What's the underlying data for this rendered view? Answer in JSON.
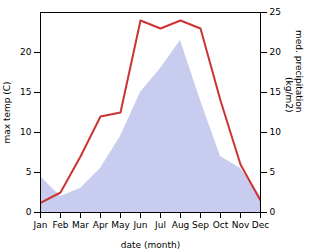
{
  "chart_data": {
    "type": "line",
    "categories": [
      "Jan",
      "Feb",
      "Mar",
      "Apr",
      "May",
      "Jun",
      "Jul",
      "Aug",
      "Sep",
      "Oct",
      "Nov",
      "Dec"
    ],
    "xlabel": "date (month)",
    "ylabel": "max temp (C)",
    "y2label": "med. precipitation\n(kg/m2)",
    "series": [
      {
        "type": "area",
        "axis": "y2",
        "color": "#c8ccee",
        "values": [
          4.5,
          2.0,
          3.0,
          5.5,
          9.5,
          15.0,
          18.0,
          21.5,
          14.0,
          7.0,
          5.5,
          2.0
        ]
      },
      {
        "type": "line",
        "color": "#cc3333",
        "values": [
          1.2,
          2.5,
          7.0,
          12.0,
          12.5,
          24.0,
          23.0,
          24.0,
          23.0,
          14.0,
          6.0,
          1.5
        ]
      }
    ],
    "ylim": [
      0,
      25
    ],
    "yticks": [
      0,
      5,
      10,
      15,
      20
    ],
    "y2lim": [
      0,
      25
    ],
    "y2ticks": [
      0,
      5,
      10,
      15,
      20,
      25
    ]
  }
}
